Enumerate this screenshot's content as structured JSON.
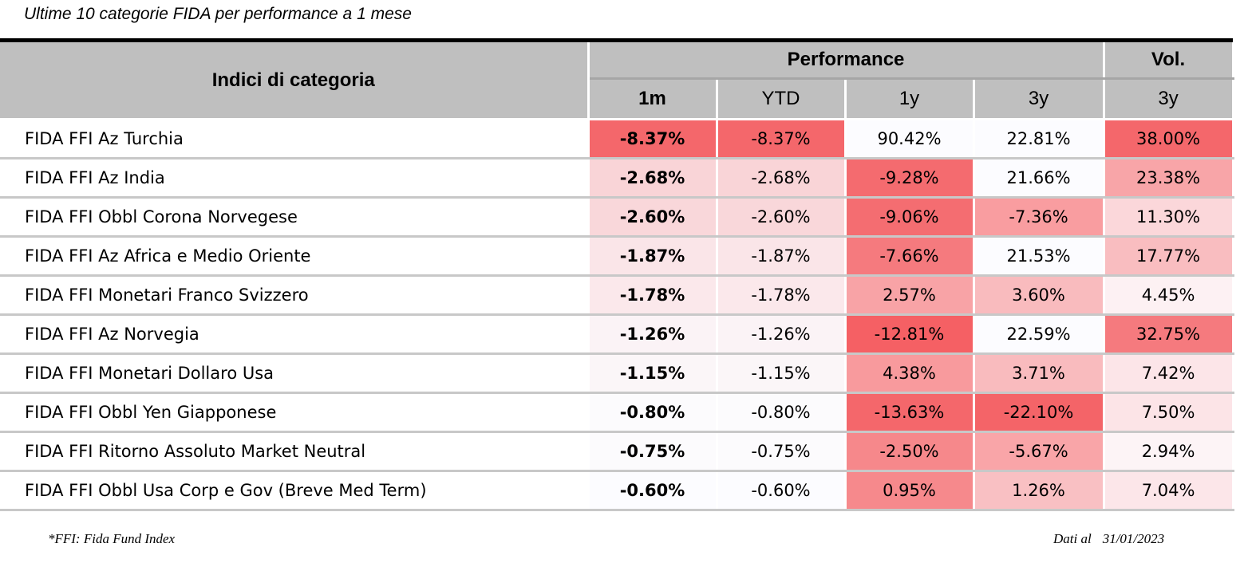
{
  "caption": "Ultime 10 categorie FIDA per performance a 1 mese",
  "header": {
    "name": "Indici di categoria",
    "performance": "Performance",
    "vol": "Vol.",
    "cols": [
      "1m",
      "YTD",
      "1y",
      "3y",
      "3y"
    ]
  },
  "rows": [
    {
      "name": "FIDA FFI Az Turchia",
      "m1": "-8.37%",
      "ytd": "-8.37%",
      "y1": "90.42%",
      "y3": "22.81%",
      "vol": "38.00%"
    },
    {
      "name": "FIDA FFI Az India",
      "m1": "-2.68%",
      "ytd": "-2.68%",
      "y1": "-9.28%",
      "y3": "21.66%",
      "vol": "23.38%"
    },
    {
      "name": "FIDA FFI Obbl Corona Norvegese",
      "m1": "-2.60%",
      "ytd": "-2.60%",
      "y1": "-9.06%",
      "y3": "-7.36%",
      "vol": "11.30%"
    },
    {
      "name": "FIDA FFI Az Africa e Medio Oriente",
      "m1": "-1.87%",
      "ytd": "-1.87%",
      "y1": "-7.66%",
      "y3": "21.53%",
      "vol": "17.77%"
    },
    {
      "name": "FIDA FFI Monetari Franco Svizzero",
      "m1": "-1.78%",
      "ytd": "-1.78%",
      "y1": "2.57%",
      "y3": "3.60%",
      "vol": "4.45%"
    },
    {
      "name": "FIDA FFI Az Norvegia",
      "m1": "-1.26%",
      "ytd": "-1.26%",
      "y1": "-12.81%",
      "y3": "22.59%",
      "vol": "32.75%"
    },
    {
      "name": "FIDA FFI Monetari Dollaro Usa",
      "m1": "-1.15%",
      "ytd": "-1.15%",
      "y1": "4.38%",
      "y3": "3.71%",
      "vol": "7.42%"
    },
    {
      "name": "FIDA FFI Obbl Yen Giapponese",
      "m1": "-0.80%",
      "ytd": "-0.80%",
      "y1": "-13.63%",
      "y3": "-22.10%",
      "vol": "7.50%"
    },
    {
      "name": "FIDA FFI Ritorno Assoluto Market Neutral",
      "m1": "-0.75%",
      "ytd": "-0.75%",
      "y1": "-2.50%",
      "y3": "-5.67%",
      "vol": "2.94%"
    },
    {
      "name": "FIDA FFI Obbl Usa Corp e Gov (Breve Med Term)",
      "m1": "-0.60%",
      "ytd": "-0.60%",
      "y1": "0.95%",
      "y3": "1.26%",
      "vol": "7.04%"
    }
  ],
  "cell_colors": [
    [
      "#f4676b",
      "#f4676b",
      "#fcfcff",
      "#fcfcff",
      "#f4676b"
    ],
    [
      "#f9d4d7",
      "#f9d4d7",
      "#f46b6f",
      "#fcfcff",
      "#f8a5a8"
    ],
    [
      "#f9d7da",
      "#f9d7da",
      "#f46d71",
      "#f99da0",
      "#fbd7da"
    ],
    [
      "#fae5e8",
      "#fae5e8",
      "#f57a7e",
      "#fcfcff",
      "#f9bdc0"
    ],
    [
      "#fbe8eb",
      "#fbe8eb",
      "#f8a3a6",
      "#f9bbbe",
      "#fdf1f3"
    ],
    [
      "#fbf3f6",
      "#fbf3f6",
      "#f56064",
      "#fcfcff",
      "#f57a7e"
    ],
    [
      "#fbf6f8",
      "#fbf6f8",
      "#f89a9d",
      "#f9bbbe",
      "#fce5e8"
    ],
    [
      "#fcfbfd",
      "#fcfbfd",
      "#f4676b",
      "#f46468",
      "#fce4e7"
    ],
    [
      "#fcfbfd",
      "#fcfbfd",
      "#f6888b",
      "#f9a5a8",
      "#fdf4f6"
    ],
    [
      "#fcfcff",
      "#fcfcff",
      "#f6898c",
      "#f9c0c3",
      "#fce6e9"
    ]
  ],
  "footnote": "*FFI: Fida Fund Index",
  "date_label": "Dati al",
  "date_value": "31/01/2023"
}
